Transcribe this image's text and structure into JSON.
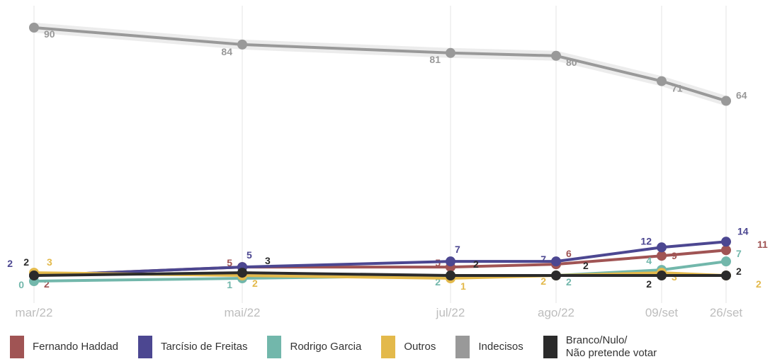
{
  "chart_data": {
    "type": "line",
    "categories": [
      "mar/22",
      "mai/22",
      "jul/22",
      "ago/22",
      "09/set",
      "26/set"
    ],
    "ylim": [
      0,
      90
    ],
    "grid": "vertical",
    "legend_position": "bottom",
    "series": [
      {
        "name": "Indecisos",
        "color": "#999999",
        "values": [
          90,
          84,
          81,
          80,
          71,
          64
        ],
        "labels": [
          "90",
          "84",
          "81",
          "80",
          "71",
          "64"
        ]
      },
      {
        "name": "Fernando Haddad",
        "color": "#a05454",
        "values": [
          2,
          5,
          5,
          6,
          9,
          11
        ],
        "labels": [
          "2",
          "5",
          "5",
          "6",
          "9",
          "11"
        ]
      },
      {
        "name": "Tarcísio de Freitas",
        "color": "#4c4791",
        "values": [
          2,
          5,
          7,
          7,
          12,
          14
        ],
        "labels": [
          "2",
          "5",
          "7",
          "7",
          "12",
          "14"
        ]
      },
      {
        "name": "Rodrigo Garcia",
        "color": "#72b7ab",
        "values": [
          0,
          1,
          2,
          2,
          4,
          7
        ],
        "labels": [
          "0",
          "1",
          "2",
          "2",
          "4",
          "7"
        ]
      },
      {
        "name": "Outros",
        "color": "#e3b94b",
        "values": [
          3,
          2,
          1,
          2,
          3,
          2
        ],
        "labels": [
          "3",
          "2",
          "1",
          "2",
          "3",
          "2"
        ]
      },
      {
        "name": "Branco/Nulo/ Não pretende votar",
        "color": "#2b2b2b",
        "values": [
          2,
          3,
          2,
          2,
          2,
          2
        ],
        "labels": [
          "2",
          "3",
          "2",
          "2",
          "2",
          "2"
        ]
      }
    ]
  },
  "legend": [
    {
      "label": "Fernando Haddad",
      "color": "#a05454"
    },
    {
      "label": "Tarcísio de Freitas",
      "color": "#4c4791"
    },
    {
      "label": "Rodrigo Garcia",
      "color": "#72b7ab"
    },
    {
      "label": "Outros",
      "color": "#e3b94b"
    },
    {
      "label": "Indecisos",
      "color": "#999999"
    },
    {
      "label_line1": "Branco/Nulo/",
      "label_line2": "Não pretende votar",
      "color": "#2b2b2b"
    }
  ]
}
